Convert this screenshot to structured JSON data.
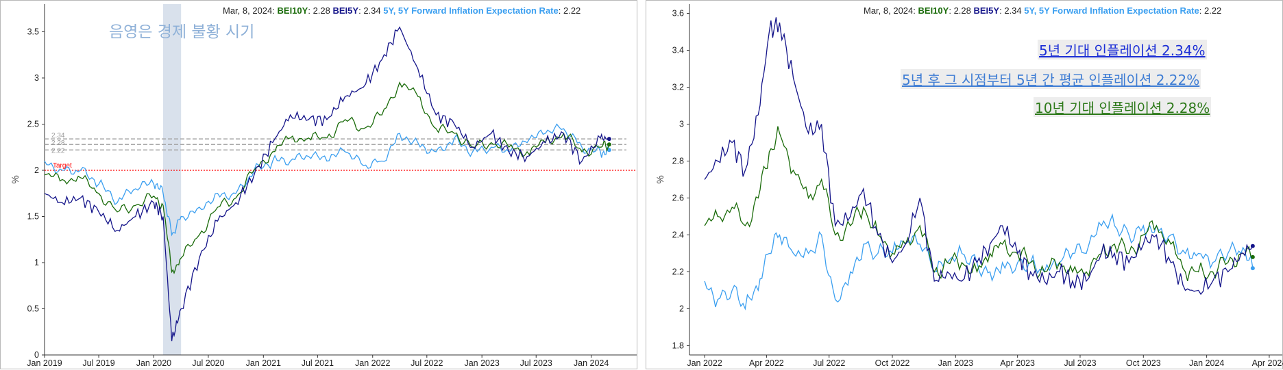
{
  "header": {
    "date": "Mar, 8, 2024",
    "bei10y_label": "BEI10Y",
    "bei10y_value": "2.28",
    "bei5y_label": "BEI5Y",
    "bei5y_value": "2.34",
    "fw_label": "5Y, 5Y Forward Inflation Expectation Rate",
    "fw_value": "2.22"
  },
  "colors": {
    "bei10y": "#1a6b0a",
    "bei5y": "#15158a",
    "fw": "#3b9ff0",
    "target": "#ff0000",
    "recession": "#d9e1ec",
    "ref": "#a8a8a8"
  },
  "left_annotations": {
    "recession_note": "음영은 경제 불황 시기",
    "target_label": "Target",
    "ref_labels": [
      "2.34",
      "2.28",
      "2.22"
    ]
  },
  "right_annotations": {
    "ann_5y": "5년 기대 인플레이션 2.34%",
    "ann_fw": "5년 후 그 시점부터 5년 간 평균 인플레이션 2.22%",
    "ann_10y": "10년 기대 인플레이션 2.28%"
  },
  "chart_data": [
    {
      "type": "line",
      "ylabel": "%",
      "xlabel": "",
      "ylim": [
        0,
        3.8
      ],
      "yticks": [
        "0",
        "0.5",
        "1",
        "1.5",
        "2",
        "2.5",
        "3",
        "3.5"
      ],
      "xticks": [
        "Jan 2019",
        "Jul 2019",
        "Jan 2020",
        "Jul 2020",
        "Jan 2021",
        "Jul 2021",
        "Jan 2022",
        "Jul 2022",
        "Jan 2023",
        "Jul 2023",
        "Jan 2024"
      ],
      "target": 2.0,
      "recession": [
        "2020-02",
        "2020-04"
      ],
      "x": [
        "2019-01",
        "2019-03",
        "2019-05",
        "2019-07",
        "2019-09",
        "2019-11",
        "2020-01",
        "2020-02",
        "2020-03",
        "2020-04",
        "2020-06",
        "2020-08",
        "2020-10",
        "2020-12",
        "2021-02",
        "2021-04",
        "2021-06",
        "2021-08",
        "2021-10",
        "2021-12",
        "2022-02",
        "2022-04",
        "2022-06",
        "2022-08",
        "2022-10",
        "2022-12",
        "2023-02",
        "2023-04",
        "2023-06",
        "2023-08",
        "2023-10",
        "2023-12",
        "2024-02",
        "2024-03"
      ],
      "series": [
        {
          "name": "BEI10Y",
          "values": [
            1.95,
            1.9,
            1.92,
            1.75,
            1.55,
            1.62,
            1.72,
            1.62,
            0.9,
            1.05,
            1.3,
            1.6,
            1.7,
            2.0,
            2.2,
            2.35,
            2.35,
            2.35,
            2.55,
            2.45,
            2.6,
            2.95,
            2.8,
            2.45,
            2.4,
            2.25,
            2.3,
            2.25,
            2.2,
            2.3,
            2.4,
            2.2,
            2.25,
            2.28
          ]
        },
        {
          "name": "BEI5Y",
          "values": [
            1.75,
            1.65,
            1.7,
            1.55,
            1.35,
            1.5,
            1.65,
            1.5,
            0.15,
            0.5,
            1.05,
            1.45,
            1.65,
            1.95,
            2.3,
            2.6,
            2.55,
            2.55,
            2.8,
            2.9,
            3.2,
            3.55,
            3.1,
            2.6,
            2.5,
            2.25,
            2.4,
            2.2,
            2.15,
            2.3,
            2.4,
            2.1,
            2.35,
            2.34
          ]
        },
        {
          "name": "5Y, 5Y Forward Inflation Expectation Rate",
          "values": [
            2.1,
            2.0,
            2.0,
            1.85,
            1.65,
            1.8,
            1.85,
            1.75,
            1.3,
            1.5,
            1.6,
            1.75,
            1.75,
            2.0,
            2.1,
            2.1,
            2.15,
            2.1,
            2.2,
            2.05,
            2.1,
            2.4,
            2.3,
            2.2,
            2.35,
            2.2,
            2.25,
            2.2,
            2.3,
            2.4,
            2.45,
            2.25,
            2.2,
            2.22
          ]
        }
      ]
    },
    {
      "type": "line",
      "ylabel": "%",
      "xlabel": "",
      "ylim": [
        1.75,
        3.65
      ],
      "yticks": [
        "1.8",
        "2",
        "2.2",
        "2.4",
        "2.6",
        "2.8",
        "3",
        "3.2",
        "3.4",
        "3.6"
      ],
      "xticks": [
        "Jan 2022",
        "Apr 2022",
        "Jul 2022",
        "Oct 2022",
        "Jan 2023",
        "Apr 2023",
        "Jul 2023",
        "Oct 2023",
        "Jan 2024",
        "Apr 2024"
      ],
      "x": [
        "2022-01-01",
        "2022-01-20",
        "2022-02-10",
        "2022-03-01",
        "2022-03-20",
        "2022-04-05",
        "2022-04-20",
        "2022-05-10",
        "2022-06-01",
        "2022-06-20",
        "2022-07-10",
        "2022-08-01",
        "2022-08-20",
        "2022-09-10",
        "2022-10-01",
        "2022-10-20",
        "2022-11-10",
        "2022-12-01",
        "2022-12-20",
        "2023-01-10",
        "2023-02-01",
        "2023-02-20",
        "2023-03-10",
        "2023-04-01",
        "2023-04-20",
        "2023-05-10",
        "2023-06-01",
        "2023-06-20",
        "2023-07-10",
        "2023-08-01",
        "2023-08-20",
        "2023-09-10",
        "2023-10-01",
        "2023-10-20",
        "2023-11-10",
        "2023-12-01",
        "2023-12-20",
        "2024-01-10",
        "2024-02-01",
        "2024-02-20",
        "2024-03-08"
      ],
      "series": [
        {
          "name": "BEI10Y",
          "values": [
            2.45,
            2.5,
            2.55,
            2.45,
            2.6,
            2.85,
            2.95,
            2.75,
            2.6,
            2.7,
            2.4,
            2.45,
            2.55,
            2.4,
            2.3,
            2.35,
            2.45,
            2.2,
            2.25,
            2.25,
            2.2,
            2.3,
            2.35,
            2.3,
            2.25,
            2.2,
            2.25,
            2.2,
            2.2,
            2.3,
            2.35,
            2.3,
            2.4,
            2.45,
            2.35,
            2.2,
            2.2,
            2.2,
            2.25,
            2.3,
            2.28
          ]
        },
        {
          "name": "BEI5Y",
          "values": [
            2.7,
            2.8,
            2.9,
            2.75,
            3.05,
            3.5,
            3.55,
            3.25,
            2.95,
            3.0,
            2.45,
            2.5,
            2.65,
            2.4,
            2.25,
            2.35,
            2.6,
            2.15,
            2.2,
            2.15,
            2.25,
            2.35,
            2.45,
            2.3,
            2.2,
            2.15,
            2.2,
            2.15,
            2.15,
            2.3,
            2.3,
            2.25,
            2.35,
            2.4,
            2.25,
            2.1,
            2.1,
            2.15,
            2.2,
            2.3,
            2.34
          ]
        },
        {
          "name": "5Y, 5Y Forward Inflation Expectation Rate",
          "values": [
            2.15,
            2.05,
            2.1,
            2.0,
            2.1,
            2.3,
            2.4,
            2.3,
            2.3,
            2.4,
            2.05,
            2.2,
            2.35,
            2.3,
            2.3,
            2.35,
            2.35,
            2.2,
            2.25,
            2.3,
            2.25,
            2.2,
            2.25,
            2.25,
            2.25,
            2.2,
            2.25,
            2.3,
            2.3,
            2.45,
            2.45,
            2.4,
            2.45,
            2.45,
            2.4,
            2.3,
            2.3,
            2.25,
            2.3,
            2.3,
            2.22
          ]
        }
      ]
    }
  ]
}
